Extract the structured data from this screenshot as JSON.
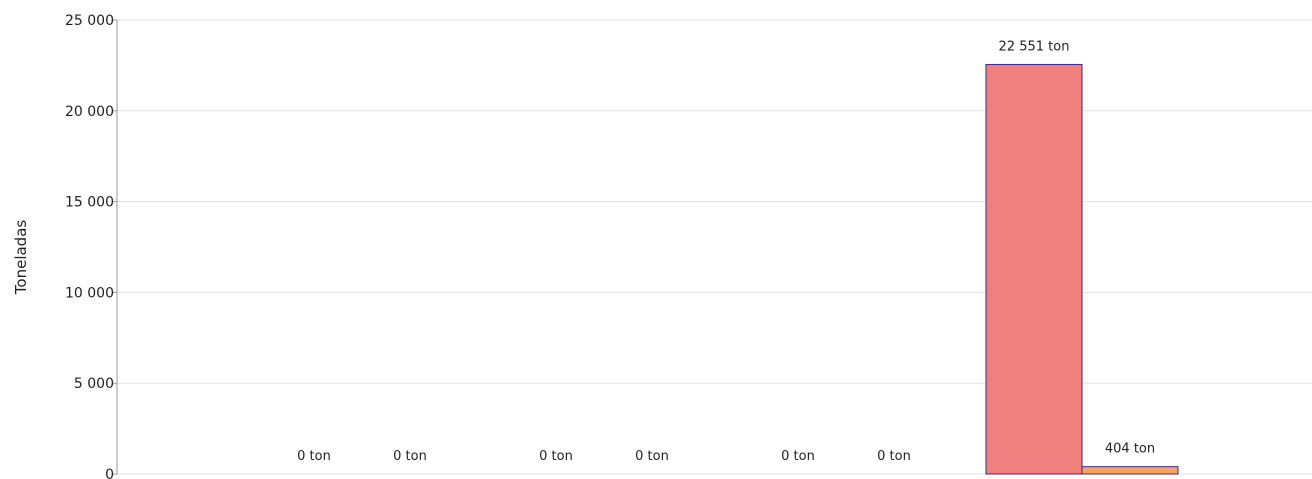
{
  "chart_data": {
    "type": "bar",
    "ylabel": "Toneladas",
    "ylim": [
      0,
      25000
    ],
    "yticks": [
      0,
      5000,
      10000,
      15000,
      20000,
      25000
    ],
    "ytick_labels": [
      "0",
      "5 000",
      "10 000",
      "15 000",
      "20 000",
      "25 000"
    ],
    "grid": true,
    "categories": [
      "",
      "",
      "",
      ""
    ],
    "series": [
      {
        "color": "#f08080",
        "values": [
          0,
          0,
          0,
          22551
        ],
        "labels": [
          "0 ton",
          "0 ton",
          "0 ton",
          "22 551 ton"
        ]
      },
      {
        "color": "#f4a460",
        "values": [
          0,
          0,
          0,
          404
        ],
        "labels": [
          "0 ton",
          "0 ton",
          "0 ton",
          "404 ton"
        ]
      }
    ],
    "bar_border_color": "#3a2a8a"
  }
}
